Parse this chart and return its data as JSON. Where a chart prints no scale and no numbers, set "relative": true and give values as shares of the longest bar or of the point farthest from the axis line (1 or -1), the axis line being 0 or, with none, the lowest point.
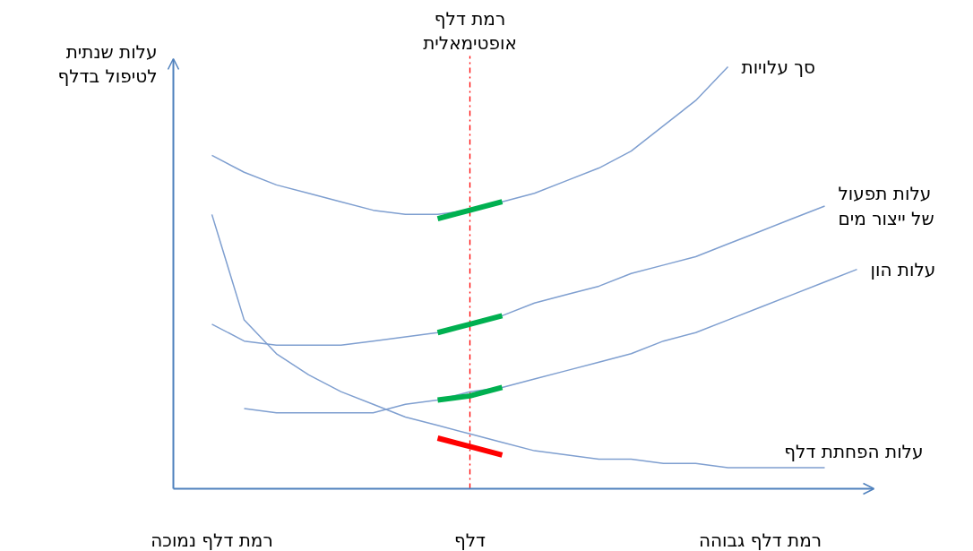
{
  "chart_data": {
    "type": "line",
    "relative": true,
    "ylabel": "עלות שנתית לטיפול בדלף",
    "categories": [
      null,
      "רמת דלף נמוכה",
      null,
      null,
      null,
      null,
      null,
      null,
      null,
      "דלף",
      null,
      null,
      null,
      null,
      null,
      null,
      null,
      null,
      "רמת דלף גבוהה",
      null,
      null,
      null
    ],
    "series": [
      {
        "name": "סך עלויות",
        "color": "#7f9fd0",
        "values": [
          null,
          0.79,
          0.75,
          0.72,
          0.7,
          0.68,
          0.66,
          0.65,
          0.65,
          0.66,
          0.68,
          0.7,
          0.73,
          0.76,
          0.8,
          0.86,
          0.92,
          1,
          null,
          null,
          null,
          null
        ]
      },
      {
        "name": "עלות תפעול של ייצור מים",
        "color": "#7f9fd0",
        "values": [
          null,
          0.39,
          0.35,
          0.34,
          0.34,
          0.34,
          0.35,
          0.36,
          0.37,
          0.39,
          0.41,
          0.44,
          0.46,
          0.48,
          0.51,
          0.53,
          0.55,
          0.58,
          0.61,
          0.64,
          0.67,
          null
        ]
      },
      {
        "name": "עלות הון",
        "color": "#7f9fd0",
        "values": [
          null,
          null,
          0.19,
          0.18,
          0.18,
          0.18,
          0.18,
          0.2,
          0.21,
          0.23,
          0.24,
          0.26,
          0.28,
          0.3,
          0.32,
          0.35,
          0.37,
          0.4,
          0.43,
          0.46,
          0.49,
          0.52
        ]
      },
      {
        "name": "עלות הפחתת דלף",
        "color": "#7f9fd0",
        "values": [
          null,
          0.65,
          0.4,
          0.32,
          0.27,
          0.23,
          0.2,
          0.17,
          0.15,
          0.13,
          0.11,
          0.09,
          0.08,
          0.07,
          0.07,
          0.06,
          0.06,
          0.05,
          0.05,
          0.05,
          0.05,
          null
        ]
      },
      {
        "color": "#00b050",
        "values": [
          null,
          null,
          null,
          null,
          null,
          null,
          null,
          null,
          0.64,
          0.66,
          0.68,
          null,
          null,
          null,
          null,
          null,
          null,
          null,
          null,
          null,
          null,
          null
        ]
      },
      {
        "color": "#00b050",
        "values": [
          null,
          null,
          null,
          null,
          null,
          null,
          null,
          null,
          0.37,
          0.39,
          0.41,
          null,
          null,
          null,
          null,
          null,
          null,
          null,
          null,
          null,
          null,
          null
        ]
      },
      {
        "color": "#00b050",
        "values": [
          null,
          null,
          null,
          null,
          null,
          null,
          null,
          null,
          0.21,
          0.22,
          0.24,
          null,
          null,
          null,
          null,
          null,
          null,
          null,
          null,
          null,
          null,
          null
        ]
      },
      {
        "color": "#ff0000",
        "values": [
          null,
          null,
          null,
          null,
          null,
          null,
          null,
          null,
          0.12,
          0.1,
          0.08,
          null,
          null,
          null,
          null,
          null,
          null,
          null,
          null,
          null,
          null,
          null
        ]
      }
    ],
    "ref_lines": [
      {
        "axis": "x",
        "value": "דלף",
        "label": "רמת דלף אופטימאלית",
        "color": "#ff0000",
        "line_style": "dashed"
      }
    ],
    "grid": false,
    "legend": false,
    "marker": "none",
    "line_style": "solid"
  }
}
